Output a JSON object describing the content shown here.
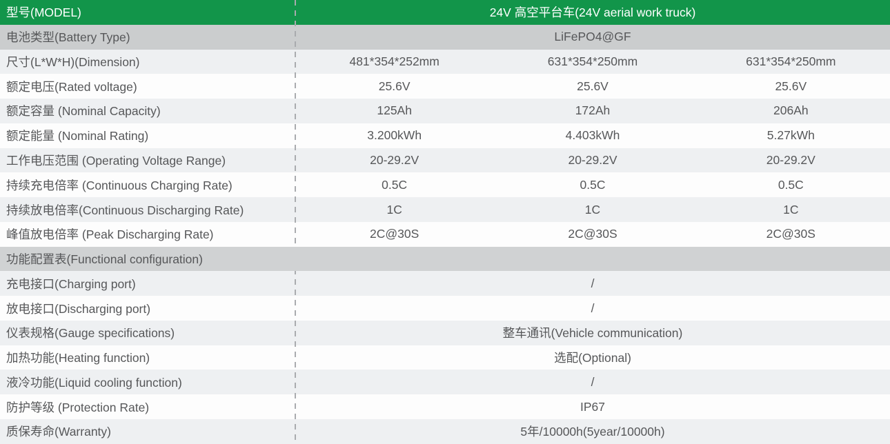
{
  "colors": {
    "accent_green": "#12954A",
    "section_gray": "#d0d2d3",
    "subheader_gray": "#cbcdce",
    "alt_row_gray": "#eef0f2",
    "text_gray": "#565759",
    "divider_gray": "#a9abae"
  },
  "header": {
    "label": "型号(MODEL)",
    "value": "24V 高空平台车(24V aerial work truck)"
  },
  "table": {
    "rows": [
      {
        "label": "电池类型(Battery Type)",
        "value": "LiFePO4@GF"
      },
      {
        "label": "尺寸(L*W*H)(Dimension)",
        "values": [
          "481*354*252mm",
          "631*354*250mm",
          "631*354*250mm"
        ]
      },
      {
        "label": "额定电压(Rated voltage)",
        "values": [
          "25.6V",
          "25.6V",
          "25.6V"
        ]
      },
      {
        "label": "额定容量 (Nominal Capacity)",
        "values": [
          "125Ah",
          "172Ah",
          "206Ah"
        ]
      },
      {
        "label": "额定能量 (Nominal Rating)",
        "values": [
          "3.200kWh",
          "4.403kWh",
          "5.27kWh"
        ]
      },
      {
        "label": "工作电压范围 (Operating Voltage Range)",
        "values": [
          "20-29.2V",
          "20-29.2V",
          "20-29.2V"
        ]
      },
      {
        "label": "持续充电倍率 (Continuous Charging Rate)",
        "values": [
          "0.5C",
          "0.5C",
          "0.5C"
        ]
      },
      {
        "label": "持续放电倍率(Continuous Discharging Rate)",
        "values": [
          "1C",
          "1C",
          "1C"
        ]
      },
      {
        "label": "峰值放电倍率 (Peak Discharging Rate)",
        "values": [
          "2C@30S",
          "2C@30S",
          "2C@30S"
        ]
      },
      {
        "label": "功能配置表(Functional configuration)"
      },
      {
        "label": "充电接口(Charging port)",
        "value": "/"
      },
      {
        "label": "放电接口(Discharging port)",
        "value": "/"
      },
      {
        "label": "仪表规格(Gauge specifications)",
        "value": "整车通讯(Vehicle communication)"
      },
      {
        "label": "加热功能(Heating function)",
        "value": "选配(Optional)"
      },
      {
        "label": "液冷功能(Liquid cooling function)",
        "value": "/"
      },
      {
        "label": "防护等级 (Protection Rate)",
        "value": "IP67"
      },
      {
        "label": "质保寿命(Warranty)",
        "value": "5年/10000h(5year/10000h)"
      }
    ]
  }
}
